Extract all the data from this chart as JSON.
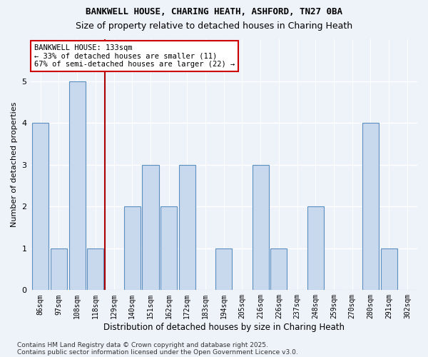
{
  "title_line1": "BANKWELL HOUSE, CHARING HEATH, ASHFORD, TN27 0BA",
  "title_line2": "Size of property relative to detached houses in Charing Heath",
  "xlabel": "Distribution of detached houses by size in Charing Heath",
  "ylabel": "Number of detached properties",
  "categories": [
    "86sqm",
    "97sqm",
    "108sqm",
    "118sqm",
    "129sqm",
    "140sqm",
    "151sqm",
    "162sqm",
    "172sqm",
    "183sqm",
    "194sqm",
    "205sqm",
    "216sqm",
    "226sqm",
    "237sqm",
    "248sqm",
    "259sqm",
    "270sqm",
    "280sqm",
    "291sqm",
    "302sqm"
  ],
  "values": [
    4,
    1,
    5,
    1,
    0,
    2,
    3,
    2,
    3,
    0,
    1,
    0,
    3,
    1,
    0,
    2,
    0,
    0,
    4,
    1,
    0
  ],
  "bar_color": "#c8d9ee",
  "bar_edge_color": "#5a8fc0",
  "annotation_text": "BANKWELL HOUSE: 133sqm\n← 33% of detached houses are smaller (11)\n67% of semi-detached houses are larger (22) →",
  "annotation_box_color": "white",
  "annotation_box_edge_color": "#cc0000",
  "red_line_x": 3.5,
  "ylim": [
    0,
    6
  ],
  "yticks": [
    0,
    1,
    2,
    3,
    4,
    5
  ],
  "footer_line1": "Contains HM Land Registry data © Crown copyright and database right 2025.",
  "footer_line2": "Contains public sector information licensed under the Open Government Licence v3.0.",
  "background_color": "#eef2f9",
  "title1_fontsize": 9,
  "title2_fontsize": 9
}
